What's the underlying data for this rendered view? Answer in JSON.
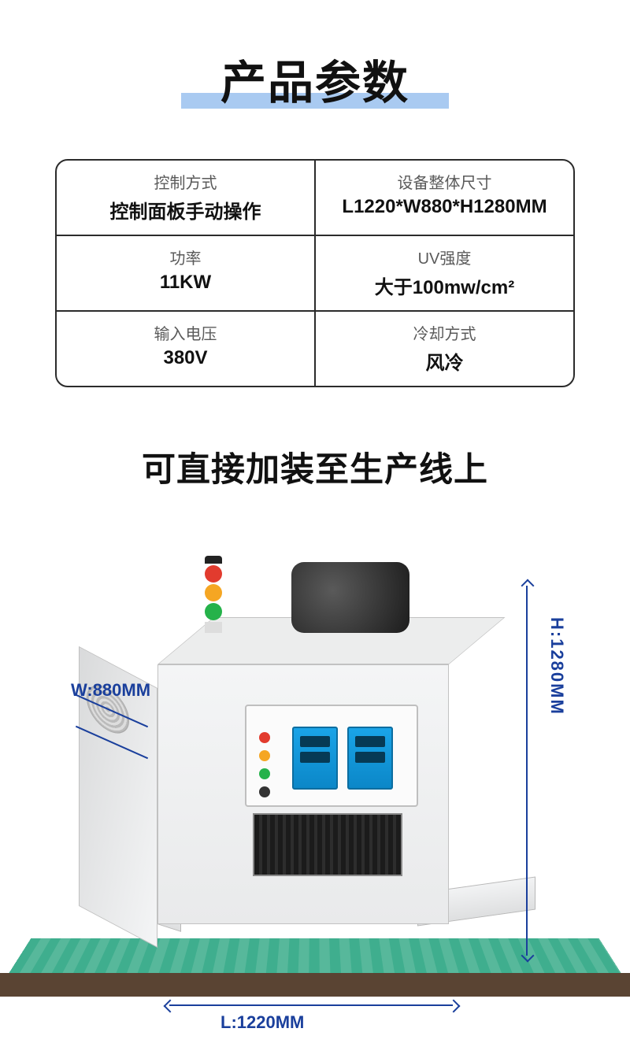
{
  "title": "产品参数",
  "title_highlight_color": "#a9caf1",
  "subtitle": "可直接加装至生产线上",
  "spec_table": {
    "border_color": "#2b2b2b",
    "label_color": "#5a5a5a",
    "value_color": "#111111",
    "rows": [
      [
        {
          "label": "控制方式",
          "value": "控制面板手动操作"
        },
        {
          "label": "设备整体尺寸",
          "value": "L1220*W880*H1280MM"
        }
      ],
      [
        {
          "label": "功率",
          "value": "11KW"
        },
        {
          "label": "UV强度",
          "value": "大于100mw/cm²"
        }
      ],
      [
        {
          "label": "输入电压",
          "value": "380V"
        },
        {
          "label": "冷却方式",
          "value": "风冷"
        }
      ]
    ]
  },
  "dimensions": {
    "color": "#1a3f9c",
    "height_label": "H:1280MM",
    "length_label": "L:1220MM",
    "width_label": "W:880MM",
    "H_mm": 1280,
    "L_mm": 1220,
    "W_mm": 880
  },
  "machine_styling": {
    "body_color": "#f4f5f6",
    "body_shadow": "#d9dadb",
    "panel_display_color": "#1aa4e8",
    "signal_lights": [
      "#e23b2e",
      "#f5a623",
      "#25b24a"
    ],
    "conveyor_color": "#3fae8e",
    "conveyor_edge_color": "#5a4433"
  }
}
